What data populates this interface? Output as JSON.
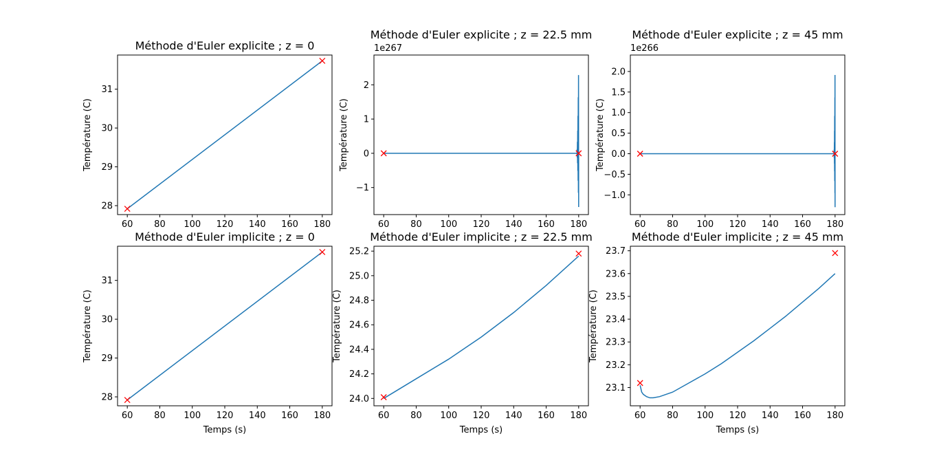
{
  "chart_data": [
    {
      "type": "line",
      "title": "Méthode d'Euler explicite ; z = 0",
      "xlabel": "",
      "ylabel": "Température (C)",
      "xlim": [
        54,
        186
      ],
      "ylim": [
        27.77,
        31.88
      ],
      "xticks": [
        60,
        80,
        100,
        120,
        140,
        160,
        180
      ],
      "yticks": [
        28,
        29,
        30,
        31
      ],
      "ytick_labels": [
        "28",
        "29",
        "30",
        "31"
      ],
      "offset_text": "",
      "curve": {
        "kind": "linear",
        "x": [
          60,
          180
        ],
        "y": [
          27.92,
          31.73
        ]
      },
      "markers": [
        {
          "x": 60,
          "y": 27.92
        },
        {
          "x": 180,
          "y": 31.73
        }
      ],
      "line_color": "#1f77b4",
      "marker_color": "#ff0000"
    },
    {
      "type": "line",
      "title": "Méthode d'Euler explicite ; z = 22.5 mm",
      "xlabel": "",
      "ylabel": "Température (C)",
      "xlim": [
        54,
        186
      ],
      "ylim": [
        -1.79,
        2.87
      ],
      "xticks": [
        60,
        80,
        100,
        120,
        140,
        160,
        180
      ],
      "yticks": [
        -1,
        0,
        1,
        2
      ],
      "ytick_labels": [
        "−1",
        "0",
        "1",
        "2"
      ],
      "offset_text": "1e267",
      "curve": {
        "kind": "oscillate",
        "x_start": 60,
        "x_end": 180,
        "osc_start": 178.8,
        "osc_min": -1.57,
        "osc_max": 2.65
      },
      "markers": [
        {
          "x": 60,
          "y": 0
        },
        {
          "x": 180,
          "y": 0
        }
      ],
      "line_color": "#1f77b4",
      "marker_color": "#ff0000"
    },
    {
      "type": "line",
      "title": "Méthode d'Euler explicite ; z = 45 mm",
      "xlabel": "",
      "ylabel": "Température (C)",
      "xlim": [
        54,
        186
      ],
      "ylim": [
        -1.48,
        2.4
      ],
      "xticks": [
        60,
        80,
        100,
        120,
        140,
        160,
        180
      ],
      "yticks": [
        -1,
        -0.5,
        0,
        0.5,
        1,
        1.5,
        2
      ],
      "ytick_labels": [
        "−1.0",
        "−0.5",
        "0.0",
        "0.5",
        "1.0",
        "1.5",
        "2.0"
      ],
      "offset_text": "1e266",
      "curve": {
        "kind": "oscillate",
        "x_start": 60,
        "x_end": 180,
        "osc_start": 179.3,
        "osc_min": -1.3,
        "osc_max": 2.22
      },
      "markers": [
        {
          "x": 60,
          "y": 0
        },
        {
          "x": 180,
          "y": 0
        }
      ],
      "line_color": "#1f77b4",
      "marker_color": "#ff0000"
    },
    {
      "type": "line",
      "title": "Méthode d'Euler implicite ; z = 0",
      "xlabel": "Temps (s)",
      "ylabel": "Température (C)",
      "xlim": [
        54,
        186
      ],
      "ylim": [
        27.77,
        31.88
      ],
      "xticks": [
        60,
        80,
        100,
        120,
        140,
        160,
        180
      ],
      "yticks": [
        28,
        29,
        30,
        31
      ],
      "ytick_labels": [
        "28",
        "29",
        "30",
        "31"
      ],
      "offset_text": "",
      "curve": {
        "kind": "linear",
        "x": [
          60,
          180
        ],
        "y": [
          27.92,
          31.73
        ]
      },
      "markers": [
        {
          "x": 60,
          "y": 27.92
        },
        {
          "x": 180,
          "y": 31.73
        }
      ],
      "line_color": "#1f77b4",
      "marker_color": "#ff0000"
    },
    {
      "type": "line",
      "title": "Méthode d'Euler implicite ; z = 22.5 mm",
      "xlabel": "Temps (s)",
      "ylabel": "Température (C)",
      "xlim": [
        54,
        186
      ],
      "ylim": [
        23.94,
        25.24
      ],
      "xticks": [
        60,
        80,
        100,
        120,
        140,
        160,
        180
      ],
      "yticks": [
        24.0,
        24.2,
        24.4,
        24.6,
        24.8,
        25.0,
        25.2
      ],
      "ytick_labels": [
        "24.0",
        "24.2",
        "24.4",
        "24.6",
        "24.8",
        "25.0",
        "25.2"
      ],
      "offset_text": "",
      "curve": {
        "kind": "points",
        "x": [
          60,
          80,
          100,
          120,
          140,
          160,
          180
        ],
        "y": [
          24.0,
          24.16,
          24.32,
          24.5,
          24.7,
          24.92,
          25.16
        ]
      },
      "markers": [
        {
          "x": 60,
          "y": 24.01
        },
        {
          "x": 180,
          "y": 25.18
        }
      ],
      "line_color": "#1f77b4",
      "marker_color": "#ff0000"
    },
    {
      "type": "line",
      "title": "Méthode d'Euler implicite ; z = 45 mm",
      "xlabel": "Temps (s)",
      "ylabel": "Température (C)",
      "xlim": [
        54,
        186
      ],
      "ylim": [
        23.02,
        23.72
      ],
      "xticks": [
        60,
        80,
        100,
        120,
        140,
        160,
        180
      ],
      "yticks": [
        23.1,
        23.2,
        23.3,
        23.4,
        23.5,
        23.6,
        23.7
      ],
      "ytick_labels": [
        "23.1",
        "23.2",
        "23.3",
        "23.4",
        "23.5",
        "23.6",
        "23.7"
      ],
      "offset_text": "",
      "curve": {
        "kind": "points",
        "x": [
          60,
          61,
          62,
          64,
          66,
          68,
          72,
          80,
          90,
          100,
          110,
          120,
          130,
          140,
          150,
          160,
          170,
          180
        ],
        "y": [
          23.11,
          23.08,
          23.07,
          23.06,
          23.055,
          23.055,
          23.06,
          23.08,
          23.12,
          23.16,
          23.205,
          23.255,
          23.305,
          23.36,
          23.415,
          23.475,
          23.535,
          23.6
        ]
      },
      "markers": [
        {
          "x": 60,
          "y": 23.12
        },
        {
          "x": 180,
          "y": 23.69
        }
      ],
      "line_color": "#1f77b4",
      "marker_color": "#ff0000"
    }
  ]
}
